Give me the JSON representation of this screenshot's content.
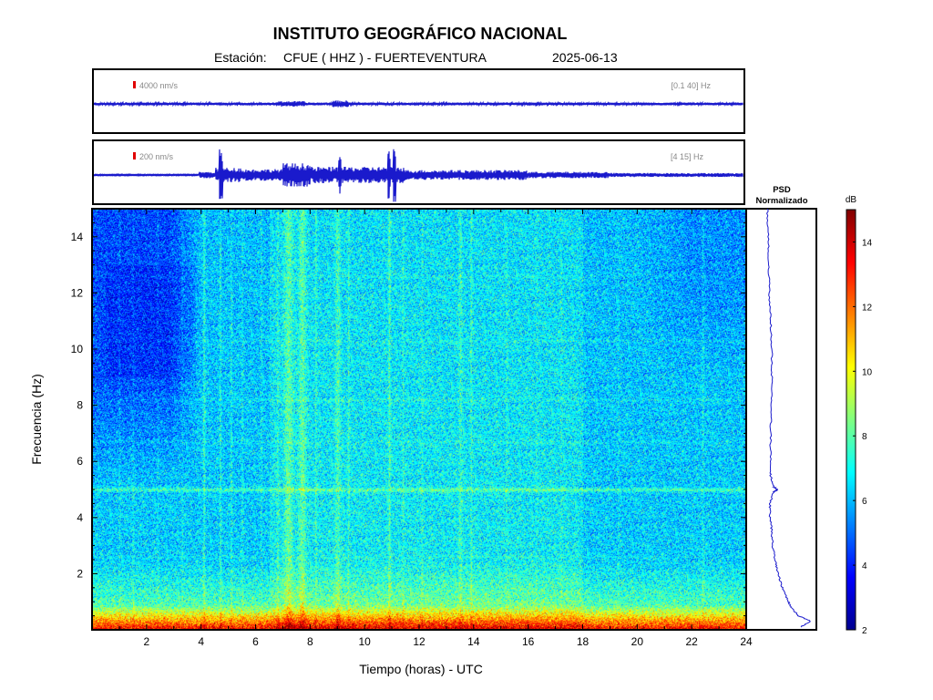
{
  "header": {
    "title": "INSTITUTO GEOGRÁFICO NACIONAL",
    "station_prefix": "Estación:",
    "station": "CFUE ( HHZ ) - FUERTEVENTURA",
    "date": "2025-06-13"
  },
  "traces": [
    {
      "scale": "4000 nm/s",
      "band": "[0.1 40] Hz"
    },
    {
      "scale": "200 nm/s",
      "band": "[4 15] Hz"
    }
  ],
  "psd_panel": {
    "title_line1": "PSD",
    "title_line2": "Normalizado"
  },
  "colorbar": {
    "unit": "dB",
    "min": 2,
    "max": 15,
    "ticks": [
      "2",
      "4",
      "6",
      "8",
      "10",
      "12",
      "14"
    ],
    "colors": [
      "#00008f",
      "#0000ff",
      "#0080ff",
      "#00ffff",
      "#80ff80",
      "#ffff00",
      "#ff8000",
      "#ff0000",
      "#800000"
    ]
  },
  "chart_data": {
    "type": "heatmap",
    "xlabel": "Tiempo (horas) - UTC",
    "ylabel": "Frecuencia  (Hz)",
    "xlim": [
      0,
      24
    ],
    "ylim": [
      0,
      15
    ],
    "x_ticks": [
      "2",
      "4",
      "6",
      "8",
      "10",
      "12",
      "14",
      "16",
      "18",
      "20",
      "22",
      "24"
    ],
    "y_ticks": [
      "2",
      "4",
      "6",
      "8",
      "10",
      "12",
      "14"
    ],
    "value_range_db": [
      2,
      15
    ],
    "features": [
      {
        "kind": "low-frequency band",
        "freq_hz": [
          0,
          0.8
        ],
        "level_db": 11.5
      },
      {
        "kind": "horizontal line",
        "freq_hz": 5.0,
        "time_h": [
          0,
          24
        ],
        "level_db": 8
      },
      {
        "kind": "low-noise region",
        "time_h": [
          0,
          3.8
        ],
        "freq_hz": [
          8,
          15
        ],
        "level_db": 5
      },
      {
        "kind": "elevated noise",
        "time_h": [
          7,
          8
        ],
        "freq_hz": [
          0,
          15
        ],
        "level_db": 8.8
      },
      {
        "kind": "elevated noise",
        "time_h": [
          8.8,
          9.5
        ],
        "freq_hz": [
          0,
          15
        ],
        "level_db": 8.3
      }
    ],
    "psd_profile": {
      "freq_hz": [
        0.1,
        0.3,
        0.5,
        0.8,
        1,
        1.5,
        2,
        2.5,
        3,
        3.5,
        4,
        4.5,
        4.9,
        5.0,
        5.1,
        5.5,
        6,
        7,
        8,
        9,
        10,
        11,
        12,
        13,
        14,
        15
      ],
      "level_norm": [
        0.55,
        0.72,
        0.52,
        0.4,
        0.36,
        0.26,
        0.19,
        0.14,
        0.1,
        0.09,
        0.06,
        0.06,
        0.12,
        0.18,
        0.12,
        0.07,
        0.07,
        0.07,
        0.08,
        0.09,
        0.09,
        0.07,
        0.05,
        0.04,
        0.03,
        0.02
      ]
    }
  }
}
